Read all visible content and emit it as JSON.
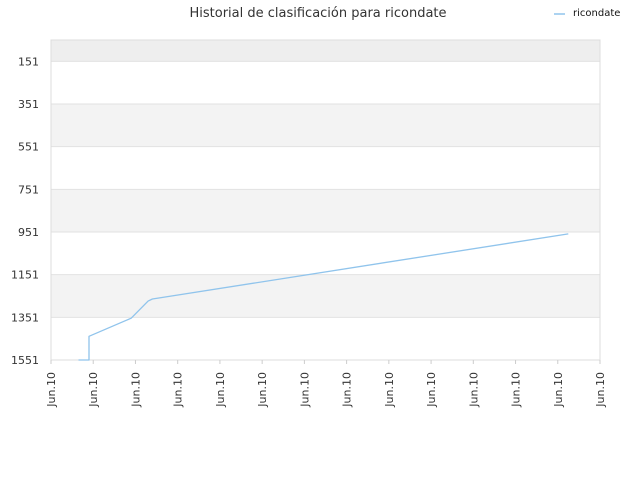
{
  "chart_data": {
    "type": "line",
    "title": "Historial de clasificación para ricondate",
    "xlabel": "",
    "ylabel": "",
    "y_inverted": true,
    "ylim": [
      51,
      1551
    ],
    "y_ticks": [
      151,
      351,
      551,
      751,
      951,
      1151,
      1351,
      1551
    ],
    "x_tick_labels": [
      "Jun.10",
      "Jun.10",
      "Jun.10",
      "Jun.10",
      "Jun.10",
      "Jun.10",
      "Jun.10",
      "Jun.10",
      "Jun.10",
      "Jun.10",
      "Jun.10",
      "Jun.10",
      "Jun.10",
      "Jun.10"
    ],
    "grid": true,
    "alternating_bands": true,
    "legend_position": "top-right",
    "series": [
      {
        "name": "ricondate",
        "color": "#90c4ec",
        "x": [
          0.65,
          0.9,
          0.9,
          1.9,
          2.3,
          2.4,
          12.25
        ],
        "values": [
          1551,
          1551,
          1440,
          1355,
          1275,
          1265,
          960
        ]
      }
    ]
  }
}
